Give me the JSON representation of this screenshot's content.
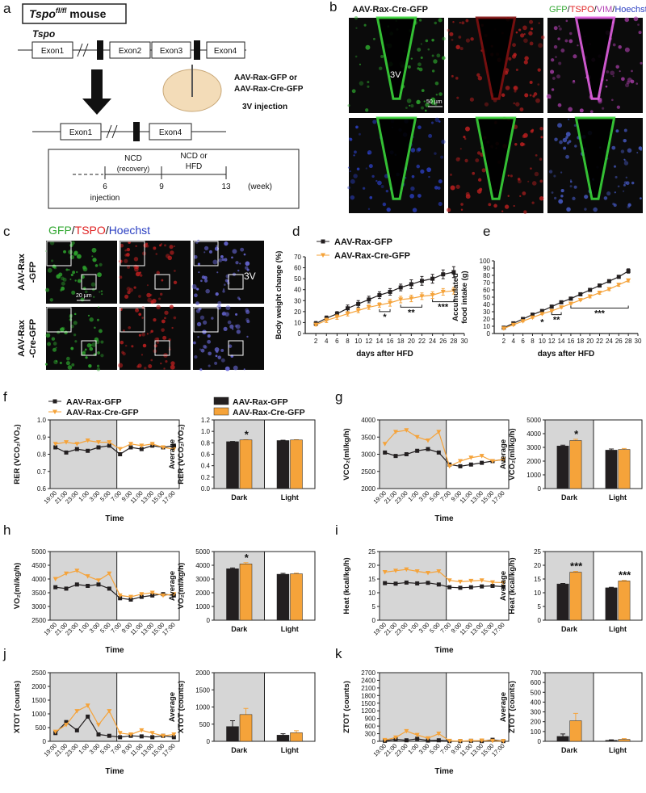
{
  "panel_labels": [
    "a",
    "b",
    "c",
    "d",
    "e",
    "f",
    "g",
    "h",
    "i",
    "j",
    "k"
  ],
  "schematic": {
    "mouse": {
      "gene": "Tspo",
      "sup": "fl/fl",
      "suffix": " mouse"
    },
    "gene_label": "Tspo",
    "exons": [
      "Exon1",
      "Exon2",
      "Exon3",
      "Exon4"
    ],
    "vectors": [
      "AAV-Rax-GFP or",
      "AAV-Rax-Cre-GFP"
    ],
    "injection_site": "3V injection",
    "deleted_exons": [
      "Exon1",
      "Exon4"
    ],
    "timeline": {
      "phase1": [
        "NCD",
        "(recovery)"
      ],
      "phase2": [
        "NCD or",
        "HFD"
      ],
      "weeks": [
        "6",
        "9",
        "13"
      ],
      "unit": "(week)",
      "event": "injection"
    }
  },
  "micrograph_b": {
    "title": "AAV-Rax-Cre-GFP",
    "channels": [
      {
        "text": "GFP",
        "color": "#33a833"
      },
      {
        "text": "TSPO",
        "color": "#e02424"
      },
      {
        "text": "VIM",
        "color": "#b540b5"
      },
      {
        "text": "Hoechst",
        "color": "#2b3fc2"
      }
    ],
    "separator": "/",
    "ventricle": "3V",
    "scale": "50 µm"
  },
  "micrograph_c": {
    "channels": [
      {
        "text": "GFP",
        "color": "#33a833"
      },
      {
        "text": "TSPO",
        "color": "#e02424"
      },
      {
        "text": "Hoechst",
        "color": "#2b3fc2"
      }
    ],
    "separator": "/",
    "rows": [
      [
        "AAV-Rax",
        "-GFP"
      ],
      [
        "AAV-Rax",
        "-Cre-GFP"
      ]
    ],
    "scale": "20 µm",
    "ventricle": "3V"
  },
  "chart_data": [
    {
      "type": "line",
      "xlabel": "days after HFD",
      "ylabel": [
        "Body weight change (%)"
      ],
      "x": [
        2,
        4,
        6,
        8,
        10,
        12,
        14,
        16,
        18,
        20,
        22,
        24,
        26,
        28
      ],
      "xlim": [
        0,
        30
      ],
      "xticks": [
        2,
        4,
        6,
        8,
        10,
        12,
        14,
        16,
        18,
        20,
        22,
        24,
        26,
        28,
        30
      ],
      "ylim": [
        0,
        70
      ],
      "yticks": [
        0,
        10,
        20,
        30,
        40,
        50,
        60,
        70
      ],
      "series": [
        {
          "name": "AAV-Rax-GFP",
          "color": "#231f20",
          "values": [
            9,
            14,
            18,
            23,
            27,
            31,
            35,
            38,
            42,
            45,
            48,
            50,
            54,
            56
          ],
          "errors": [
            2,
            2,
            2,
            3,
            3,
            3,
            3,
            3,
            3,
            4,
            4,
            4,
            4,
            5
          ]
        },
        {
          "name": "AAV-Rax-Cre-GFP",
          "color": "#f5a33a",
          "values": [
            8,
            12,
            15,
            18,
            21,
            24,
            26,
            28,
            31,
            32,
            34,
            35,
            38,
            39
          ],
          "errors": [
            1,
            2,
            2,
            2,
            2,
            2,
            2,
            3,
            3,
            3,
            3,
            3,
            3,
            3
          ]
        }
      ],
      "annotations": [
        "*",
        "**",
        "***"
      ],
      "legend": "above"
    },
    {
      "type": "line",
      "xlabel": "days after HFD",
      "ylabel": [
        "Accumulated",
        "food intake (g)"
      ],
      "x": [
        2,
        4,
        6,
        8,
        10,
        12,
        14,
        16,
        18,
        20,
        22,
        24,
        26,
        28
      ],
      "xlim": [
        0,
        30
      ],
      "xticks": [
        2,
        4,
        6,
        8,
        10,
        12,
        14,
        16,
        18,
        20,
        22,
        24,
        26,
        28,
        30
      ],
      "ylim": [
        0,
        100
      ],
      "yticks": [
        0,
        10,
        20,
        30,
        40,
        50,
        60,
        70,
        80,
        90,
        100
      ],
      "series": [
        {
          "name": "AAV-Rax-GFP",
          "color": "#231f20",
          "values": [
            8,
            14,
            20,
            26,
            31,
            37,
            43,
            48,
            54,
            60,
            66,
            72,
            78,
            86
          ],
          "errors": [
            1,
            1,
            1,
            1,
            1,
            1,
            2,
            2,
            2,
            2,
            2,
            2,
            2,
            3
          ]
        },
        {
          "name": "AAV-Rax-Cre-GFP",
          "color": "#f5a33a",
          "values": [
            7,
            12,
            17,
            22,
            27,
            31,
            36,
            41,
            46,
            51,
            56,
            61,
            67,
            73
          ],
          "errors": [
            1,
            1,
            1,
            1,
            1,
            1,
            1,
            1,
            1,
            2,
            2,
            2,
            2,
            2
          ]
        }
      ],
      "annotations": [
        "*",
        "**",
        "***"
      ]
    },
    {
      "type": "line",
      "xlabel": "Time",
      "ylabel": [
        "RER (VCO₂/VO₂)"
      ],
      "categories": [
        "19:00",
        "21:00",
        "23:00",
        "1:00",
        "3:00",
        "5:00",
        "7:00",
        "9:00",
        "11:00",
        "13:00",
        "15:00",
        "17:00"
      ],
      "ylim": [
        0.6,
        1.0
      ],
      "yticks": [
        0.6,
        0.7,
        0.8,
        0.9,
        {
          "value": 1,
          "label": "1.0"
        }
      ],
      "series": [
        {
          "name": "AAV-Rax-GFP",
          "color": "#231f20",
          "values": [
            0.84,
            0.81,
            0.83,
            0.82,
            0.84,
            0.85,
            0.8,
            0.84,
            0.83,
            0.85,
            0.84,
            0.85
          ]
        },
        {
          "name": "AAV-Rax-Cre-GFP",
          "color": "#f5a33a",
          "values": [
            0.86,
            0.87,
            0.86,
            0.88,
            0.87,
            0.87,
            0.83,
            0.86,
            0.85,
            0.86,
            0.84,
            0.83
          ]
        }
      ],
      "legend": "above"
    },
    {
      "type": "bar",
      "ylabel": [
        "Average",
        "RER (VCO₂/VO₂)"
      ],
      "categories": [
        "Dark",
        "Light"
      ],
      "ylim": [
        0,
        1.2
      ],
      "yticks": [
        {
          "value": 0,
          "label": "0.0"
        },
        0.2,
        0.4,
        0.6,
        0.8,
        {
          "value": 1,
          "label": "1.0"
        },
        1.2
      ],
      "series": [
        {
          "name": "AAV-Rax-GFP",
          "color": "#231f20",
          "values": [
            0.82,
            0.84
          ],
          "errors": [
            0.005,
            0.005
          ]
        },
        {
          "name": "AAV-Rax-Cre-GFP",
          "color": "#f5a33a",
          "values": [
            0.85,
            0.85
          ],
          "errors": [
            0.005,
            0.005
          ]
        }
      ],
      "annotations": [
        "*"
      ],
      "legend": "above"
    },
    {
      "type": "line",
      "xlabel": "Time",
      "ylabel": [
        "VCO₂(ml/kg/h)"
      ],
      "categories": [
        "19:00",
        "21:00",
        "23:00",
        "1:00",
        "3:00",
        "5:00",
        "7:00",
        "9:00",
        "11:00",
        "13:00",
        "15:00",
        "17:00"
      ],
      "ylim": [
        2000,
        4000
      ],
      "yticks": [
        2000,
        2500,
        3000,
        3500,
        4000
      ],
      "series": [
        {
          "name": "AAV-Rax-GFP",
          "color": "#231f20",
          "values": [
            3050,
            2950,
            3000,
            3100,
            3150,
            3050,
            2700,
            2650,
            2700,
            2750,
            2800,
            2850
          ]
        },
        {
          "name": "AAV-Rax-Cre-GFP",
          "color": "#f5a33a",
          "values": [
            3300,
            3650,
            3700,
            3500,
            3400,
            3650,
            2650,
            2800,
            2900,
            2950,
            2800,
            2850
          ]
        }
      ]
    },
    {
      "type": "bar",
      "ylabel": [
        "Average",
        "VCO₂(ml/kg/h)"
      ],
      "categories": [
        "Dark",
        "Light"
      ],
      "ylim": [
        0,
        5000
      ],
      "yticks": [
        0,
        1000,
        2000,
        3000,
        4000,
        5000
      ],
      "series": [
        {
          "name": "AAV-Rax-GFP",
          "color": "#231f20",
          "values": [
            3100,
            2800
          ],
          "errors": [
            60,
            80
          ]
        },
        {
          "name": "AAV-Rax-Cre-GFP",
          "color": "#f5a33a",
          "values": [
            3500,
            2850
          ],
          "errors": [
            90,
            70
          ]
        }
      ],
      "annotations": [
        "*"
      ]
    },
    {
      "type": "line",
      "xlabel": "Time",
      "ylabel": [
        "VO₂(ml/kg/h)"
      ],
      "categories": [
        "19:00",
        "21:00",
        "23:00",
        "1:00",
        "3:00",
        "5:00",
        "7:00",
        "9:00",
        "11:00",
        "13:00",
        "15:00",
        "17:00"
      ],
      "ylim": [
        2500,
        5000
      ],
      "yticks": [
        2500,
        3000,
        3500,
        4000,
        4500,
        5000
      ],
      "series": [
        {
          "name": "AAV-Rax-GFP",
          "color": "#231f20",
          "values": [
            3700,
            3650,
            3800,
            3750,
            3800,
            3650,
            3300,
            3250,
            3350,
            3400,
            3450,
            3400
          ]
        },
        {
          "name": "AAV-Rax-Cre-GFP",
          "color": "#f5a33a",
          "values": [
            4000,
            4200,
            4300,
            4100,
            3950,
            4200,
            3400,
            3350,
            3450,
            3500,
            3400,
            3450
          ]
        }
      ]
    },
    {
      "type": "bar",
      "ylabel": [
        "Average",
        "VO₂(ml/kg/h)"
      ],
      "categories": [
        "Dark",
        "Light"
      ],
      "ylim": [
        0,
        5000
      ],
      "yticks": [
        0,
        1000,
        2000,
        3000,
        4000,
        5000
      ],
      "series": [
        {
          "name": "AAV-Rax-GFP",
          "color": "#231f20",
          "values": [
            3750,
            3350
          ],
          "errors": [
            60,
            60
          ]
        },
        {
          "name": "AAV-Rax-Cre-GFP",
          "color": "#f5a33a",
          "values": [
            4100,
            3380
          ],
          "errors": [
            90,
            50
          ]
        }
      ],
      "annotations": [
        "*"
      ]
    },
    {
      "type": "line",
      "xlabel": "Time",
      "ylabel": [
        "Heat (kcal/kg/h)"
      ],
      "categories": [
        "19:00",
        "21:00",
        "23:00",
        "1:00",
        "3:00",
        "5:00",
        "7:00",
        "9:00",
        "11:00",
        "13:00",
        "15:00",
        "17:00"
      ],
      "ylim": [
        0,
        25
      ],
      "yticks": [
        0,
        5,
        10,
        15,
        20,
        25
      ],
      "series": [
        {
          "name": "AAV-Rax-GFP",
          "color": "#231f20",
          "values": [
            13.5,
            13.3,
            13.7,
            13.4,
            13.6,
            13,
            12,
            11.8,
            12,
            12.3,
            12.5,
            12.2
          ]
        },
        {
          "name": "AAV-Rax-Cre-GFP",
          "color": "#f5a33a",
          "values": [
            17.5,
            18,
            18.5,
            17.8,
            17.2,
            17.8,
            14.5,
            14,
            14.3,
            14.5,
            13.8,
            13.7
          ]
        }
      ]
    },
    {
      "type": "bar",
      "ylabel": [
        "Average",
        "Heat (kcal/kg/h)"
      ],
      "categories": [
        "Dark",
        "Light"
      ],
      "ylim": [
        0,
        25
      ],
      "yticks": [
        0,
        5,
        10,
        15,
        20,
        25
      ],
      "series": [
        {
          "name": "AAV-Rax-GFP",
          "color": "#231f20",
          "values": [
            13.2,
            11.8
          ],
          "errors": [
            0.2,
            0.2
          ]
        },
        {
          "name": "AAV-Rax-Cre-GFP",
          "color": "#f5a33a",
          "values": [
            17.5,
            14.3
          ],
          "errors": [
            0.3,
            0.2
          ]
        }
      ],
      "annotations": [
        "***",
        "***"
      ]
    },
    {
      "type": "line",
      "xlabel": "Time",
      "ylabel": [
        "XTOT (counts)"
      ],
      "categories": [
        "19:00",
        "21:00",
        "23:00",
        "1:00",
        "3:00",
        "5:00",
        "7:00",
        "9:00",
        "11:00",
        "13:00",
        "15:00",
        "17:00"
      ],
      "ylim": [
        0,
        2500
      ],
      "yticks": [
        0,
        500,
        1000,
        1500,
        2000,
        2500
      ],
      "series": [
        {
          "name": "AAV-Rax-GFP",
          "color": "#231f20",
          "values": [
            300,
            700,
            400,
            900,
            250,
            200,
            150,
            200,
            180,
            150,
            200,
            150
          ]
        },
        {
          "name": "AAV-Rax-Cre-GFP",
          "color": "#f5a33a",
          "values": [
            350,
            600,
            1100,
            1300,
            600,
            1100,
            300,
            250,
            400,
            300,
            200,
            250
          ]
        }
      ]
    },
    {
      "type": "bar",
      "ylabel": [
        "Average",
        "XTOT (counts)"
      ],
      "categories": [
        "Dark",
        "Light"
      ],
      "ylim": [
        0,
        2000
      ],
      "yticks": [
        0,
        500,
        1000,
        1500,
        2000
      ],
      "series": [
        {
          "name": "AAV-Rax-GFP",
          "color": "#231f20",
          "values": [
            430,
            180
          ],
          "errors": [
            170,
            40
          ]
        },
        {
          "name": "AAV-Rax-Cre-GFP",
          "color": "#f5a33a",
          "values": [
            780,
            250
          ],
          "errors": [
            180,
            60
          ]
        }
      ]
    },
    {
      "type": "line",
      "xlabel": "Time",
      "ylabel": [
        "ZTOT (counts)"
      ],
      "categories": [
        "19:00",
        "21:00",
        "23:00",
        "1:00",
        "3:00",
        "5:00",
        "7:00",
        "9:00",
        "11:00",
        "13:00",
        "15:00",
        "17:00"
      ],
      "ylim": [
        0,
        2700
      ],
      "yticks": [
        0,
        300,
        600,
        900,
        1200,
        1500,
        1800,
        2100,
        2400,
        2700
      ],
      "series": [
        {
          "name": "AAV-Rax-GFP",
          "color": "#231f20",
          "values": [
            20,
            80,
            40,
            100,
            30,
            40,
            10,
            10,
            20,
            10,
            60,
            10
          ]
        },
        {
          "name": "AAV-Rax-Cre-GFP",
          "color": "#f5a33a",
          "values": [
            50,
            150,
            400,
            250,
            120,
            300,
            20,
            10,
            20,
            30,
            20,
            10
          ]
        }
      ]
    },
    {
      "type": "bar",
      "ylabel": [
        "Average",
        "ZTOT (counts)"
      ],
      "categories": [
        "Dark",
        "Light"
      ],
      "ylim": [
        0,
        700
      ],
      "yticks": [
        0,
        100,
        200,
        300,
        400,
        500,
        600,
        700
      ],
      "series": [
        {
          "name": "AAV-Rax-GFP",
          "color": "#231f20",
          "values": [
            50,
            10
          ],
          "errors": [
            25,
            5
          ]
        },
        {
          "name": "AAV-Rax-Cre-GFP",
          "color": "#f5a33a",
          "values": [
            210,
            20
          ],
          "errors": [
            75,
            8
          ]
        }
      ]
    }
  ]
}
